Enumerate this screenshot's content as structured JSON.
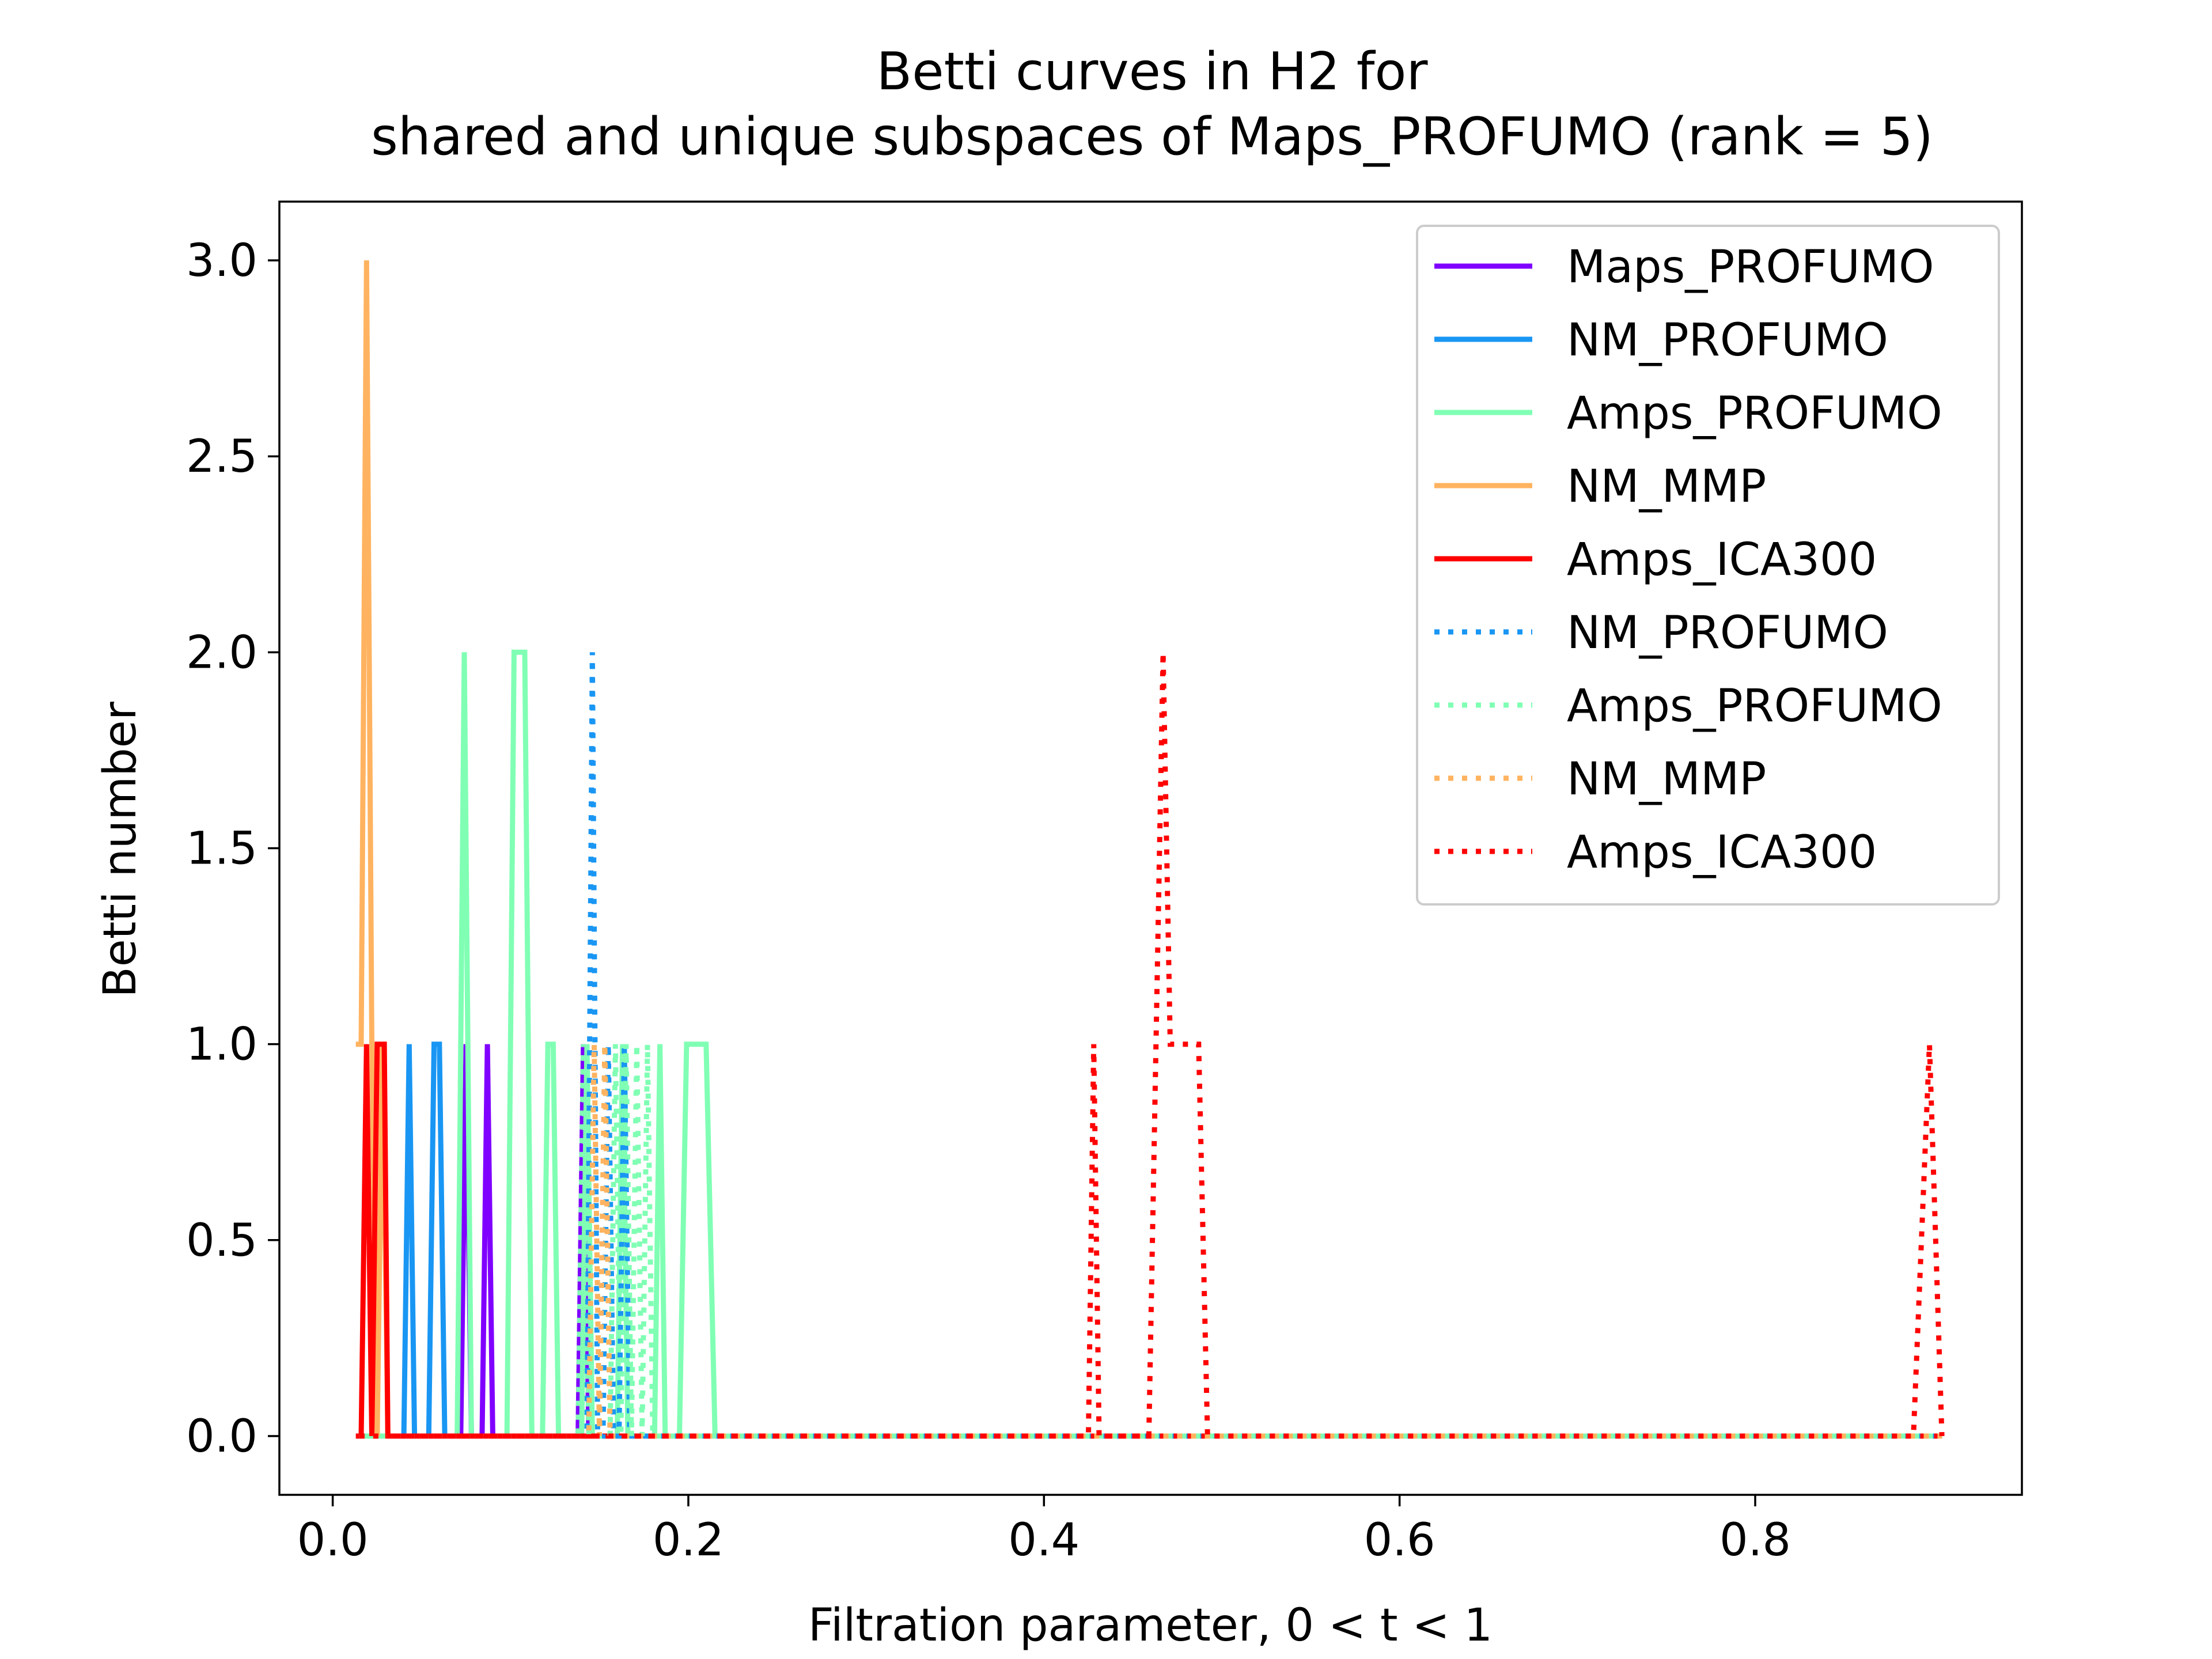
{
  "chart_data": {
    "type": "line",
    "title": [
      "Betti curves in H2 for",
      "shared and unique subspaces of Maps_PROFUMO (rank = 5)"
    ],
    "xlabel": "Filtration parameter, 0 < t < 1",
    "ylabel": "Betti number",
    "xlim": [
      -0.03,
      0.95
    ],
    "ylim": [
      -0.15,
      3.15
    ],
    "xticks": [
      0.0,
      0.2,
      0.4,
      0.6,
      0.8
    ],
    "xtick_labels": [
      "0.0",
      "0.2",
      "0.4",
      "0.6",
      "0.8"
    ],
    "yticks": [
      0.0,
      0.5,
      1.0,
      1.5,
      2.0,
      2.5,
      3.0
    ],
    "ytick_labels": [
      "0.0",
      "0.5",
      "1.0",
      "1.5",
      "2.0",
      "2.5",
      "3.0"
    ],
    "grid": false,
    "legend_position": "top-right",
    "series": [
      {
        "name": "Maps_PROFUMO",
        "color": "#8000ff",
        "style": "solid",
        "x": [
          0.015,
          0.072,
          0.075,
          0.078,
          0.084,
          0.087,
          0.09,
          0.138,
          0.141,
          0.144,
          0.905
        ],
        "y": [
          0,
          0,
          1,
          0,
          0,
          1,
          0,
          0,
          1,
          0,
          0
        ]
      },
      {
        "name": "NM_PROFUMO",
        "color": "#1996f3",
        "style": "solid",
        "x": [
          0.015,
          0.04,
          0.043,
          0.046,
          0.054,
          0.057,
          0.06,
          0.063,
          0.066,
          0.905
        ],
        "y": [
          0,
          0,
          1,
          0,
          0,
          1,
          1,
          0,
          0,
          0
        ]
      },
      {
        "name": "Amps_PROFUMO",
        "color": "#80ffb4",
        "style": "solid",
        "x": [
          0.015,
          0.07,
          0.074,
          0.078,
          0.098,
          0.102,
          0.108,
          0.112,
          0.118,
          0.121,
          0.124,
          0.127,
          0.14,
          0.143,
          0.146,
          0.16,
          0.163,
          0.166,
          0.181,
          0.184,
          0.187,
          0.195,
          0.199,
          0.203,
          0.206,
          0.21,
          0.215,
          0.905
        ],
        "y": [
          0,
          0,
          2,
          0,
          0,
          2,
          2,
          0,
          0,
          1,
          1,
          0,
          0,
          1,
          0,
          0,
          1,
          0,
          0,
          1,
          0,
          0,
          1,
          1,
          1,
          1,
          0,
          0
        ]
      },
      {
        "name": "NM_MMP",
        "color": "#ffb360",
        "style": "solid",
        "x": [
          0.013,
          0.016,
          0.019,
          0.022,
          0.025,
          0.028,
          0.031,
          0.034,
          0.905
        ],
        "y": [
          1,
          1,
          3,
          1,
          0,
          1,
          0,
          0,
          0
        ]
      },
      {
        "name": "Amps_ICA300",
        "color": "#ff0000",
        "style": "solid",
        "x": [
          0.013,
          0.016,
          0.019,
          0.022,
          0.025,
          0.027,
          0.029,
          0.031,
          0.034,
          0.905
        ],
        "y": [
          0,
          0,
          1,
          0,
          1,
          1,
          1,
          0,
          0,
          0
        ]
      },
      {
        "name": "NM_PROFUMO",
        "color": "#1996f3",
        "style": "dotted",
        "x": [
          0.015,
          0.14,
          0.143,
          0.146,
          0.149,
          0.152,
          0.155,
          0.158,
          0.161,
          0.164,
          0.167,
          0.905
        ],
        "y": [
          0,
          0,
          0,
          2,
          0,
          0,
          1,
          0,
          0,
          1,
          0,
          0
        ]
      },
      {
        "name": "Amps_PROFUMO",
        "color": "#80ffb4",
        "style": "dotted",
        "x": [
          0.015,
          0.138,
          0.141,
          0.144,
          0.15,
          0.153,
          0.156,
          0.159,
          0.162,
          0.165,
          0.168,
          0.171,
          0.174,
          0.177,
          0.18,
          0.905
        ],
        "y": [
          0,
          0,
          1,
          0,
          0,
          1,
          0,
          1,
          0,
          1,
          0,
          1,
          0,
          1,
          0,
          0
        ]
      },
      {
        "name": "NM_MMP",
        "color": "#ffb360",
        "style": "dotted",
        "x": [
          0.015,
          0.144,
          0.147,
          0.15,
          0.153,
          0.156,
          0.905
        ],
        "y": [
          0,
          0,
          1,
          0,
          1,
          0,
          0
        ]
      },
      {
        "name": "Amps_ICA300",
        "color": "#ff0000",
        "style": "dotted",
        "x": [
          0.015,
          0.425,
          0.428,
          0.431,
          0.459,
          0.463,
          0.467,
          0.471,
          0.475,
          0.487,
          0.492,
          0.889,
          0.898,
          0.905
        ],
        "y": [
          0,
          0,
          1,
          0,
          0,
          1,
          2,
          1,
          1,
          1,
          0,
          0,
          1,
          0
        ]
      }
    ]
  }
}
